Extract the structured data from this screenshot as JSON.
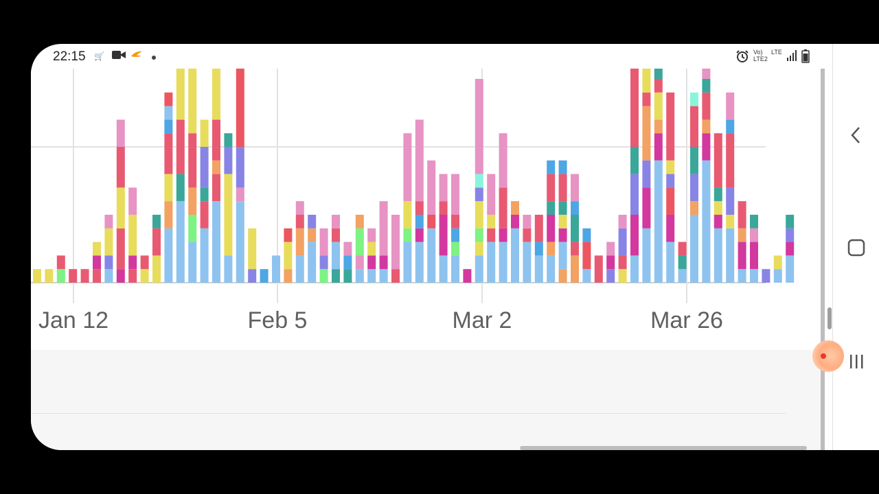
{
  "status_bar": {
    "time": "22:15",
    "left_icons": [
      "amazon-cart-icon",
      "video-camera-icon",
      "bird-app-icon",
      "notification-dot-icon"
    ],
    "right_icons": [
      "alarm-icon",
      "volte-icon",
      "lte-icon",
      "signal-icon",
      "battery-icon"
    ],
    "volte_label": "Vo) LTE2",
    "lte_label": "LTE"
  },
  "chart": {
    "x_tick_labels": [
      "Jan 12",
      "Feb 5",
      "Mar 2",
      "Mar 26"
    ],
    "palette": [
      "#8ec3ef",
      "#e85a71",
      "#e8dc5c",
      "#e793c4",
      "#f2a262",
      "#8884e6",
      "#d3389e",
      "#3aa79a",
      "#ec5660",
      "#7ef283",
      "#4ea6e4",
      "#8af5dd",
      "#e0147f"
    ]
  },
  "chart_data": {
    "type": "bar",
    "stacked": true,
    "x_ticks": [
      "Jan 12",
      "Feb 5",
      "Mar 2",
      "Mar 26"
    ],
    "grid": true,
    "bars": [
      [
        [
          2,
          1
        ]
      ],
      [
        [
          2,
          1
        ]
      ],
      [
        [
          9,
          1
        ],
        [
          1,
          1
        ]
      ],
      [
        [
          1,
          1
        ]
      ],
      [
        [
          1,
          1
        ]
      ],
      [
        [
          1,
          1
        ],
        [
          6,
          1
        ],
        [
          2,
          1
        ]
      ],
      [
        [
          0,
          1
        ],
        [
          5,
          1
        ],
        [
          2,
          2
        ],
        [
          3,
          1
        ]
      ],
      [
        [
          6,
          1
        ],
        [
          1,
          3
        ],
        [
          2,
          3
        ],
        [
          1,
          3
        ],
        [
          3,
          2
        ]
      ],
      [
        [
          1,
          1
        ],
        [
          6,
          1
        ],
        [
          2,
          3
        ],
        [
          3,
          2
        ]
      ],
      [
        [
          2,
          1
        ],
        [
          1,
          1
        ]
      ],
      [
        [
          2,
          2
        ],
        [
          1,
          2
        ],
        [
          7,
          1
        ]
      ],
      [
        [
          0,
          4
        ],
        [
          4,
          2
        ],
        [
          2,
          2
        ],
        [
          1,
          3
        ],
        [
          10,
          1
        ],
        [
          0,
          1
        ],
        [
          8,
          1
        ]
      ],
      [
        [
          0,
          6
        ],
        [
          7,
          2
        ],
        [
          1,
          4
        ],
        [
          2,
          7
        ]
      ],
      [
        [
          0,
          3
        ],
        [
          9,
          2
        ],
        [
          4,
          2
        ],
        [
          1,
          4
        ],
        [
          2,
          6
        ]
      ],
      [
        [
          0,
          4
        ],
        [
          1,
          2
        ],
        [
          7,
          1
        ],
        [
          5,
          3
        ],
        [
          2,
          2
        ]
      ],
      [
        [
          0,
          6
        ],
        [
          1,
          2
        ],
        [
          4,
          1
        ],
        [
          1,
          3
        ],
        [
          2,
          4
        ]
      ],
      [
        [
          0,
          2
        ],
        [
          2,
          6
        ],
        [
          5,
          2
        ],
        [
          7,
          1
        ]
      ],
      [
        [
          0,
          6
        ],
        [
          3,
          1
        ],
        [
          5,
          3
        ],
        [
          8,
          6
        ]
      ],
      [
        [
          5,
          1
        ],
        [
          2,
          3
        ]
      ],
      [
        [
          10,
          1
        ]
      ],
      [
        [
          0,
          2
        ]
      ],
      [
        [
          4,
          1
        ],
        [
          2,
          2
        ],
        [
          8,
          1
        ]
      ],
      [
        [
          0,
          2
        ],
        [
          4,
          2
        ],
        [
          1,
          1
        ],
        [
          3,
          1
        ]
      ],
      [
        [
          0,
          3
        ],
        [
          4,
          1
        ],
        [
          5,
          1
        ]
      ],
      [
        [
          9,
          1
        ],
        [
          5,
          1
        ],
        [
          3,
          2
        ]
      ],
      [
        [
          7,
          1
        ],
        [
          0,
          2
        ],
        [
          1,
          1
        ],
        [
          3,
          1
        ]
      ],
      [
        [
          7,
          1
        ],
        [
          10,
          1
        ],
        [
          3,
          1
        ]
      ],
      [
        [
          0,
          1
        ],
        [
          3,
          1
        ],
        [
          9,
          2
        ],
        [
          4,
          1
        ]
      ],
      [
        [
          0,
          1
        ],
        [
          6,
          1
        ],
        [
          2,
          1
        ],
        [
          3,
          1
        ]
      ],
      [
        [
          0,
          1
        ],
        [
          6,
          1
        ],
        [
          3,
          4
        ]
      ],
      [
        [
          1,
          1
        ],
        [
          3,
          4
        ]
      ],
      [
        [
          0,
          3
        ],
        [
          9,
          1
        ],
        [
          2,
          2
        ],
        [
          3,
          5
        ]
      ],
      [
        [
          0,
          3
        ],
        [
          6,
          1
        ],
        [
          10,
          1
        ],
        [
          1,
          1
        ],
        [
          3,
          6
        ]
      ],
      [
        [
          0,
          4
        ],
        [
          8,
          1
        ],
        [
          3,
          4
        ]
      ],
      [
        [
          0,
          2
        ],
        [
          6,
          3
        ],
        [
          1,
          1
        ],
        [
          3,
          2
        ]
      ],
      [
        [
          0,
          2
        ],
        [
          9,
          1
        ],
        [
          10,
          1
        ],
        [
          1,
          1
        ],
        [
          3,
          3
        ]
      ],
      [
        [
          6,
          1
        ]
      ],
      [
        [
          0,
          2
        ],
        [
          2,
          1
        ],
        [
          9,
          1
        ],
        [
          2,
          2
        ],
        [
          5,
          1
        ],
        [
          11,
          1
        ],
        [
          3,
          7
        ]
      ],
      [
        [
          0,
          3
        ],
        [
          1,
          1
        ],
        [
          2,
          1
        ],
        [
          3,
          3
        ]
      ],
      [
        [
          0,
          3
        ],
        [
          6,
          1
        ],
        [
          1,
          3
        ],
        [
          3,
          4
        ]
      ],
      [
        [
          0,
          4
        ],
        [
          6,
          1
        ],
        [
          4,
          1
        ]
      ],
      [
        [
          0,
          3
        ],
        [
          1,
          1
        ],
        [
          3,
          1
        ]
      ],
      [
        [
          0,
          2
        ],
        [
          10,
          1
        ],
        [
          1,
          2
        ]
      ],
      [
        [
          0,
          2
        ],
        [
          4,
          1
        ],
        [
          6,
          2
        ],
        [
          7,
          1
        ],
        [
          1,
          2
        ],
        [
          10,
          1
        ]
      ],
      [
        [
          4,
          1
        ],
        [
          0,
          2
        ],
        [
          6,
          1
        ],
        [
          2,
          1
        ],
        [
          7,
          1
        ],
        [
          1,
          2
        ],
        [
          10,
          1
        ]
      ],
      [
        [
          4,
          2
        ],
        [
          1,
          1
        ],
        [
          7,
          2
        ],
        [
          10,
          1
        ],
        [
          3,
          2
        ]
      ],
      [
        [
          0,
          1
        ],
        [
          8,
          2
        ],
        [
          10,
          1
        ]
      ],
      [
        [
          1,
          2
        ]
      ],
      [
        [
          5,
          1
        ],
        [
          6,
          1
        ],
        [
          3,
          1
        ]
      ],
      [
        [
          2,
          1
        ],
        [
          1,
          1
        ],
        [
          5,
          2
        ],
        [
          3,
          1
        ]
      ],
      [
        [
          0,
          2
        ],
        [
          6,
          3
        ],
        [
          5,
          3
        ],
        [
          7,
          2
        ],
        [
          1,
          6
        ],
        [
          11,
          2
        ],
        [
          10,
          1
        ]
      ],
      [
        [
          0,
          4
        ],
        [
          6,
          3
        ],
        [
          5,
          2
        ],
        [
          4,
          4
        ],
        [
          1,
          1
        ],
        [
          2,
          3
        ],
        [
          5,
          1
        ],
        [
          8,
          3
        ]
      ],
      [
        [
          0,
          9
        ],
        [
          6,
          2
        ],
        [
          4,
          1
        ],
        [
          2,
          2
        ],
        [
          1,
          1
        ],
        [
          7,
          4
        ],
        [
          8,
          2
        ],
        [
          3,
          1
        ]
      ],
      [
        [
          0,
          3
        ],
        [
          6,
          2
        ],
        [
          8,
          2
        ],
        [
          5,
          1
        ],
        [
          2,
          1
        ],
        [
          1,
          5
        ]
      ],
      [
        [
          0,
          1
        ],
        [
          7,
          1
        ],
        [
          1,
          1
        ]
      ],
      [
        [
          0,
          5
        ],
        [
          4,
          1
        ],
        [
          5,
          2
        ],
        [
          7,
          2
        ],
        [
          1,
          3
        ],
        [
          11,
          1
        ]
      ],
      [
        [
          0,
          9
        ],
        [
          6,
          2
        ],
        [
          4,
          1
        ],
        [
          1,
          2
        ],
        [
          7,
          1
        ],
        [
          3,
          1
        ],
        [
          5,
          2
        ]
      ],
      [
        [
          0,
          4
        ],
        [
          6,
          1
        ],
        [
          2,
          1
        ],
        [
          7,
          1
        ],
        [
          1,
          4
        ]
      ],
      [
        [
          0,
          4
        ],
        [
          2,
          1
        ],
        [
          5,
          2
        ],
        [
          1,
          4
        ],
        [
          10,
          1
        ],
        [
          3,
          2
        ]
      ],
      [
        [
          0,
          1
        ],
        [
          6,
          2
        ],
        [
          4,
          1
        ],
        [
          1,
          2
        ]
      ],
      [
        [
          0,
          1
        ],
        [
          6,
          2
        ],
        [
          3,
          1
        ],
        [
          7,
          1
        ]
      ],
      [
        [
          5,
          1
        ]
      ],
      [
        [
          0,
          1
        ],
        [
          2,
          1
        ]
      ],
      [
        [
          0,
          2
        ],
        [
          6,
          1
        ],
        [
          5,
          1
        ],
        [
          7,
          1
        ]
      ],
      [
        [
          0,
          2
        ],
        [
          6,
          1
        ],
        [
          5,
          1
        ]
      ],
      [
        [
          0,
          1
        ],
        [
          6,
          1
        ]
      ]
    ]
  },
  "navigation": {
    "back_icon": "chevron-left-icon",
    "home_icon": "square-home-icon",
    "recents_icon": "recents-icon"
  }
}
